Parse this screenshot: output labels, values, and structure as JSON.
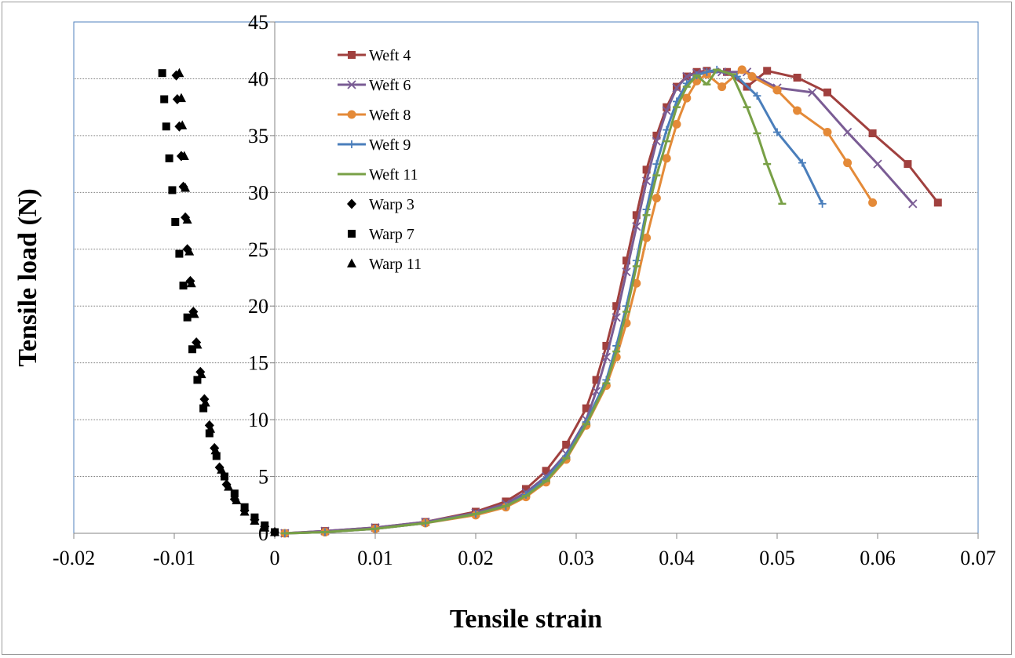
{
  "chart_data": {
    "type": "scatter",
    "title": "",
    "xlabel": "Tensile strain",
    "ylabel": "Tensile load (N)",
    "xlim": [
      -0.02,
      0.07
    ],
    "ylim": [
      0,
      45
    ],
    "xticks": [
      "-0.02",
      "-0.01",
      "0",
      "0.01",
      "0.02",
      "0.03",
      "0.04",
      "0.05",
      "0.06",
      "0.07"
    ],
    "yticks": [
      "0",
      "5",
      "10",
      "15",
      "20",
      "25",
      "30",
      "35",
      "40",
      "45"
    ],
    "grid": "horizontal",
    "legend_position": "top-left",
    "series": [
      {
        "name": "Weft 4",
        "color": "#A0403E",
        "marker": "square",
        "line": true,
        "x": [
          0.001,
          0.005,
          0.01,
          0.015,
          0.02,
          0.023,
          0.025,
          0.027,
          0.029,
          0.031,
          0.032,
          0.033,
          0.034,
          0.035,
          0.036,
          0.037,
          0.038,
          0.039,
          0.04,
          0.041,
          0.042,
          0.043,
          0.045,
          0.047,
          0.049,
          0.052,
          0.055,
          0.0595,
          0.063,
          0.066
        ],
        "y": [
          0,
          0.2,
          0.5,
          1.0,
          1.9,
          2.8,
          3.9,
          5.5,
          7.8,
          11,
          13.5,
          16.5,
          20,
          24,
          28,
          32,
          35,
          37.5,
          39.3,
          40.2,
          40.6,
          40.7,
          40.6,
          39.3,
          40.7,
          40.1,
          38.8,
          35.2,
          32.5,
          29.1
        ]
      },
      {
        "name": "Weft 6",
        "color": "#7A5C94",
        "marker": "x",
        "line": true,
        "x": [
          0.001,
          0.005,
          0.01,
          0.015,
          0.02,
          0.023,
          0.025,
          0.027,
          0.029,
          0.031,
          0.032,
          0.033,
          0.034,
          0.035,
          0.036,
          0.037,
          0.038,
          0.039,
          0.04,
          0.041,
          0.042,
          0.043,
          0.0445,
          0.047,
          0.05,
          0.0535,
          0.057,
          0.06,
          0.0635
        ],
        "y": [
          0,
          0.2,
          0.5,
          1.0,
          1.8,
          2.6,
          3.6,
          5.0,
          7.0,
          10,
          12.5,
          15.5,
          19,
          23,
          27,
          31,
          34.5,
          37.2,
          39.2,
          40.2,
          40.5,
          40.6,
          40.6,
          40.6,
          39.2,
          38.8,
          35.3,
          32.5,
          29.0
        ]
      },
      {
        "name": "Weft 8",
        "color": "#E48A38",
        "marker": "circle",
        "line": true,
        "x": [
          0.001,
          0.005,
          0.01,
          0.015,
          0.02,
          0.023,
          0.025,
          0.027,
          0.029,
          0.031,
          0.033,
          0.034,
          0.035,
          0.036,
          0.037,
          0.038,
          0.039,
          0.04,
          0.041,
          0.042,
          0.043,
          0.0445,
          0.0465,
          0.0475,
          0.05,
          0.052,
          0.055,
          0.057,
          0.0595
        ],
        "y": [
          0,
          0.1,
          0.4,
          0.9,
          1.6,
          2.3,
          3.2,
          4.5,
          6.5,
          9.5,
          13,
          15.5,
          18.5,
          22,
          26,
          29.5,
          33,
          36,
          38.3,
          39.8,
          40.4,
          39.3,
          40.8,
          40.2,
          39.0,
          37.2,
          35.3,
          32.6,
          29.1
        ]
      },
      {
        "name": "Weft 9",
        "color": "#4A7EBB",
        "marker": "plus",
        "line": true,
        "x": [
          0.001,
          0.005,
          0.01,
          0.015,
          0.02,
          0.023,
          0.025,
          0.027,
          0.029,
          0.031,
          0.033,
          0.034,
          0.035,
          0.036,
          0.037,
          0.038,
          0.039,
          0.04,
          0.041,
          0.042,
          0.043,
          0.044,
          0.046,
          0.048,
          0.05,
          0.0525,
          0.0545
        ],
        "y": [
          0,
          0.1,
          0.4,
          0.9,
          1.7,
          2.4,
          3.4,
          4.8,
          6.8,
          9.8,
          13.5,
          16.5,
          20,
          24,
          28.5,
          32.5,
          35.5,
          38,
          39.6,
          40.3,
          40.6,
          40.8,
          40.2,
          38.5,
          35.3,
          32.6,
          29.0
        ]
      },
      {
        "name": "Weft 11",
        "color": "#78A046",
        "marker": "dash",
        "line": true,
        "x": [
          0.001,
          0.005,
          0.01,
          0.015,
          0.02,
          0.023,
          0.025,
          0.027,
          0.029,
          0.031,
          0.033,
          0.034,
          0.035,
          0.036,
          0.037,
          0.038,
          0.039,
          0.04,
          0.041,
          0.042,
          0.043,
          0.044,
          0.0455,
          0.047,
          0.048,
          0.049,
          0.0505
        ],
        "y": [
          0,
          0.1,
          0.4,
          0.9,
          1.7,
          2.4,
          3.3,
          4.6,
          6.6,
          9.6,
          13.2,
          16,
          19.5,
          23.5,
          28,
          31.5,
          34.5,
          37.5,
          39.3,
          40.3,
          39.5,
          40.8,
          40.4,
          37.5,
          35.2,
          32.5,
          29.0
        ]
      },
      {
        "name": "Warp 3",
        "color": "#000000",
        "marker": "diamond",
        "line": false,
        "x": [
          0.0,
          -0.001,
          -0.002,
          -0.003,
          -0.004,
          -0.0048,
          -0.0055,
          -0.006,
          -0.0065,
          -0.007,
          -0.0074,
          -0.0078,
          -0.0081,
          -0.0084,
          -0.0087,
          -0.0089,
          -0.0091,
          -0.0093,
          -0.0095,
          -0.0097,
          -0.0098
        ],
        "y": [
          0.1,
          0.6,
          1.2,
          2.0,
          3.0,
          4.3,
          5.8,
          7.5,
          9.5,
          11.8,
          14.2,
          16.8,
          19.5,
          22.2,
          25,
          27.8,
          30.5,
          33.2,
          35.8,
          38.2,
          40.3
        ]
      },
      {
        "name": "Warp 7",
        "color": "#000000",
        "marker": "square",
        "line": false,
        "x": [
          0.0,
          -0.001,
          -0.002,
          -0.003,
          -0.004,
          -0.005,
          -0.0058,
          -0.0065,
          -0.0071,
          -0.0077,
          -0.0082,
          -0.0087,
          -0.0091,
          -0.0095,
          -0.0099,
          -0.0102,
          -0.0105,
          -0.0108,
          -0.011,
          -0.0112
        ],
        "y": [
          0.1,
          0.7,
          1.4,
          2.3,
          3.5,
          5.0,
          6.8,
          8.8,
          11.0,
          13.5,
          16.2,
          19.0,
          21.8,
          24.6,
          27.4,
          30.2,
          33.0,
          35.8,
          38.2,
          40.5
        ]
      },
      {
        "name": "Warp 11",
        "color": "#000000",
        "marker": "triangle",
        "line": false,
        "x": [
          0.0,
          -0.001,
          -0.002,
          -0.003,
          -0.0038,
          -0.0046,
          -0.0053,
          -0.0059,
          -0.0064,
          -0.0069,
          -0.0073,
          -0.0077,
          -0.008,
          -0.0083,
          -0.0085,
          -0.0087,
          -0.0089,
          -0.009,
          -0.0092,
          -0.0093,
          -0.0095
        ],
        "y": [
          0.1,
          0.5,
          1.1,
          1.9,
          2.9,
          4.1,
          5.6,
          7.3,
          9.2,
          11.5,
          14.0,
          16.6,
          19.3,
          22.0,
          24.8,
          27.6,
          30.4,
          33.2,
          35.9,
          38.3,
          40.5
        ]
      }
    ]
  }
}
